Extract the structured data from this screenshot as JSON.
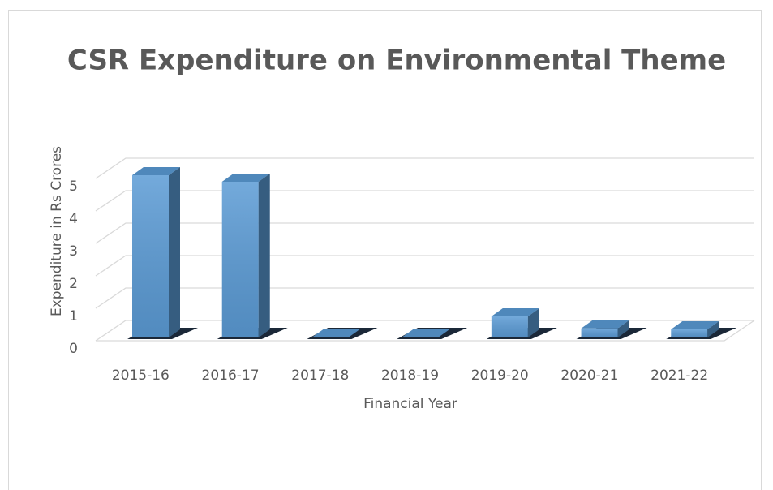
{
  "chart_data": {
    "type": "bar3d",
    "title": "CSR Expenditure on Environmental Theme",
    "y_label": "Expenditure in Rs Crores",
    "x_label": "Financial Year",
    "categories": [
      "2015-16",
      "2016-17",
      "2017-18",
      "2018-19",
      "2019-20",
      "2020-21",
      "2021-22"
    ],
    "values": [
      5.0,
      4.8,
      0,
      0,
      0.65,
      0.28,
      0.25
    ],
    "color": "#5b9bd5",
    "ylim": [
      0,
      5
    ],
    "yticks": [
      0,
      1,
      2,
      3,
      4,
      5
    ],
    "grid": true
  }
}
